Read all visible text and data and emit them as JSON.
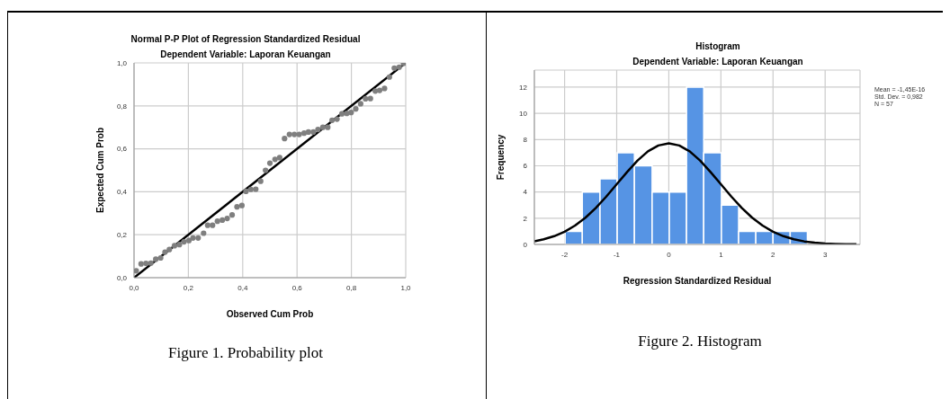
{
  "chart_data": [
    {
      "type": "scatter",
      "title": "Normal P-P Plot of Regression Standardized Residual",
      "subtitle": "Dependent Variable: Laporan Keuangan",
      "xlabel": "Observed Cum Prob",
      "ylabel": "Expected Cum Prob",
      "xlim": [
        0,
        1
      ],
      "ylim": [
        0,
        1
      ],
      "xticks": [
        {
          "value": 0,
          "label": "0,0"
        },
        {
          "value": 0.2,
          "label": "0,2"
        },
        {
          "value": 0.4,
          "label": "0,4"
        },
        {
          "value": 0.6,
          "label": "0,6"
        },
        {
          "value": 0.8,
          "label": "0,8"
        },
        {
          "value": 1,
          "label": "1,0"
        }
      ],
      "yticks": [
        {
          "value": 0,
          "label": "0,0"
        },
        {
          "value": 0.2,
          "label": "0,2"
        },
        {
          "value": 0.4,
          "label": "0,4"
        },
        {
          "value": 0.6,
          "label": "0,6"
        },
        {
          "value": 0.8,
          "label": "0,8"
        },
        {
          "value": 1,
          "label": "1,0"
        }
      ],
      "grid": true,
      "series": [
        {
          "type": "scatter",
          "color": "#7f7f7f",
          "marker": "circle",
          "x": [
            0.008,
            0.026,
            0.044,
            0.062,
            0.08,
            0.098,
            0.114,
            0.13,
            0.149,
            0.167,
            0.184,
            0.202,
            0.217,
            0.236,
            0.256,
            0.271,
            0.289,
            0.307,
            0.325,
            0.343,
            0.361,
            0.379,
            0.397,
            0.412,
            0.43,
            0.448,
            0.466,
            0.484,
            0.5,
            0.519,
            0.536,
            0.554,
            0.572,
            0.59,
            0.608,
            0.626,
            0.642,
            0.66,
            0.677,
            0.695,
            0.713,
            0.729,
            0.747,
            0.765,
            0.783,
            0.799,
            0.816,
            0.834,
            0.852,
            0.87,
            0.888,
            0.904,
            0.922,
            0.94,
            0.958,
            0.976,
            0.992
          ],
          "values": [
            0.032,
            0.064,
            0.067,
            0.068,
            0.086,
            0.092,
            0.119,
            0.131,
            0.149,
            0.154,
            0.167,
            0.173,
            0.185,
            0.185,
            0.207,
            0.244,
            0.244,
            0.263,
            0.268,
            0.276,
            0.292,
            0.33,
            0.336,
            0.402,
            0.411,
            0.412,
            0.449,
            0.5,
            0.533,
            0.551,
            0.559,
            0.648,
            0.667,
            0.667,
            0.667,
            0.673,
            0.678,
            0.678,
            0.69,
            0.7,
            0.7,
            0.733,
            0.738,
            0.763,
            0.765,
            0.769,
            0.786,
            0.81,
            0.833,
            0.834,
            0.869,
            0.872,
            0.881,
            0.934,
            0.976,
            0.98,
            0.998
          ]
        },
        {
          "type": "line",
          "color": "#000000",
          "marker": "none",
          "x": [
            0,
            1
          ],
          "values": [
            0,
            1
          ]
        }
      ],
      "annotations": [
        "Figure 1. Probability plot"
      ]
    },
    {
      "type": "histogram",
      "title": "Histogram",
      "subtitle": "Dependent Variable: Laporan Keuangan",
      "xlabel": "Regression Standardized Residual",
      "ylabel": "Frequency",
      "bins": [
        -1.99,
        -1.66,
        -1.32,
        -0.99,
        -0.66,
        -0.32,
        0.01,
        0.34,
        0.67,
        1.01,
        1.34,
        1.67,
        2.0,
        2.33,
        2.66
      ],
      "values": [
        1,
        4,
        5,
        7,
        6,
        4,
        4,
        12,
        7,
        3,
        1,
        1,
        1,
        1
      ],
      "color": "#5694e4",
      "xlim": [
        -2.58,
        3.67
      ],
      "ylim": [
        0,
        13.3
      ],
      "xticks": [
        -2,
        -1,
        0,
        1,
        2,
        3
      ],
      "yticks": [
        0,
        2,
        4,
        6,
        8,
        10,
        12
      ],
      "grid": true,
      "series": [
        {
          "type": "line",
          "color": "#000000",
          "marker": "none",
          "x": [
            -2.58,
            -2.4,
            -2.2,
            -2.0,
            -1.8,
            -1.6,
            -1.4,
            -1.2,
            -1.0,
            -0.8,
            -0.6,
            -0.4,
            -0.2,
            0,
            0.2,
            0.4,
            0.6,
            0.8,
            1.0,
            1.2,
            1.4,
            1.6,
            1.8,
            2.0,
            2.2,
            2.4,
            2.6,
            2.8,
            3.0,
            3.2,
            3.4,
            3.6
          ],
          "values": [
            0.24,
            0.39,
            0.63,
            0.97,
            1.44,
            2.04,
            2.79,
            3.65,
            4.59,
            5.53,
            6.4,
            7.1,
            7.55,
            7.71,
            7.55,
            7.1,
            6.4,
            5.53,
            4.59,
            3.65,
            2.79,
            2.04,
            1.44,
            0.97,
            0.63,
            0.39,
            0.23,
            0.13,
            0.07,
            0.04,
            0.02,
            0.01
          ]
        }
      ],
      "annotations": [
        "Mean = -1,45E-16",
        "Std. Dev. = 0,982",
        "N = 57",
        "Figure 2. Histogram"
      ]
    }
  ]
}
